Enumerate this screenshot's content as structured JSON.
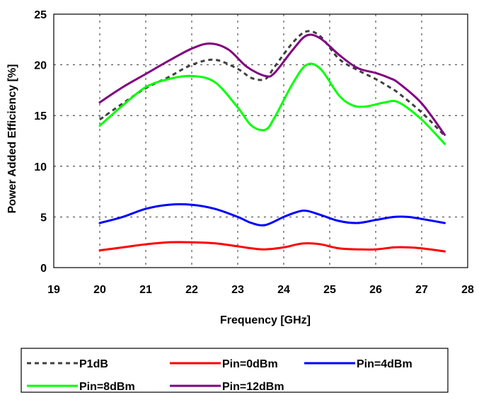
{
  "chart_data": {
    "type": "line",
    "title": "",
    "xlabel": "Frequency [GHz]",
    "ylabel": "Power Added Efficiency [%]",
    "xlim": [
      19,
      28
    ],
    "ylim": [
      0,
      25
    ],
    "x_ticks": [
      "19",
      "20",
      "21",
      "22",
      "23",
      "24",
      "25",
      "26",
      "27",
      "28"
    ],
    "y_ticks": [
      "0",
      "5",
      "10",
      "15",
      "20",
      "25"
    ],
    "grid": "dashed",
    "legend_position": "bottom",
    "series": [
      {
        "name": "P1dB",
        "color": "#404040",
        "style": "dashed",
        "x": [
          20,
          20.5,
          21,
          21.5,
          22,
          22.5,
          23,
          23.3,
          23.6,
          23.8,
          24.2,
          24.5,
          24.8,
          25.2,
          25.6,
          26,
          26.3,
          26.5,
          27,
          27.5
        ],
        "y": [
          14.6,
          16.2,
          17.7,
          18.8,
          20.0,
          20.5,
          19.6,
          18.7,
          18.6,
          19.8,
          22.2,
          23.3,
          22.8,
          20.6,
          19.5,
          18.6,
          17.8,
          17.2,
          15.3,
          13.0
        ]
      },
      {
        "name": "Pin=0dBm",
        "color": "#ff0000",
        "style": "solid",
        "x": [
          20,
          20.5,
          21,
          21.5,
          22,
          22.5,
          23,
          23.3,
          23.6,
          24,
          24.3,
          24.5,
          24.8,
          25.2,
          25.6,
          26,
          26.4,
          26.7,
          27,
          27.5
        ],
        "y": [
          1.7,
          2.0,
          2.3,
          2.5,
          2.5,
          2.4,
          2.1,
          1.9,
          1.8,
          2.0,
          2.3,
          2.4,
          2.3,
          1.9,
          1.8,
          1.8,
          2.0,
          2.0,
          1.9,
          1.6
        ]
      },
      {
        "name": "Pin=4dBm",
        "color": "#0000ff",
        "style": "solid",
        "x": [
          20,
          20.5,
          21,
          21.5,
          22,
          22.5,
          23,
          23.3,
          23.6,
          24,
          24.3,
          24.5,
          24.8,
          25.2,
          25.6,
          26,
          26.4,
          26.7,
          27,
          27.5
        ],
        "y": [
          4.4,
          5.0,
          5.8,
          6.2,
          6.2,
          5.8,
          5.0,
          4.4,
          4.2,
          5.0,
          5.5,
          5.6,
          5.2,
          4.6,
          4.4,
          4.7,
          5.0,
          5.0,
          4.8,
          4.4
        ]
      },
      {
        "name": "Pin=8dBm",
        "color": "#00ff00",
        "style": "solid",
        "x": [
          20,
          20.5,
          21,
          21.5,
          22,
          22.5,
          23,
          23.3,
          23.6,
          23.8,
          24.2,
          24.5,
          24.8,
          25.2,
          25.5,
          25.8,
          26.2,
          26.5,
          27,
          27.5
        ],
        "y": [
          14.0,
          16.0,
          17.8,
          18.6,
          18.9,
          18.3,
          15.8,
          14.0,
          13.6,
          14.8,
          18.2,
          20.0,
          19.6,
          17.0,
          16.0,
          15.9,
          16.3,
          16.3,
          14.6,
          12.2
        ]
      },
      {
        "name": "Pin=12dBm",
        "color": "#800080",
        "style": "solid",
        "x": [
          20,
          20.5,
          21,
          21.5,
          22,
          22.4,
          22.8,
          23.2,
          23.6,
          23.8,
          24.2,
          24.5,
          24.8,
          25.2,
          25.6,
          26,
          26.3,
          26.5,
          27,
          27.5
        ],
        "y": [
          16.3,
          17.8,
          19.1,
          20.4,
          21.6,
          22.1,
          21.5,
          19.8,
          18.9,
          19.2,
          21.5,
          22.9,
          22.6,
          21.0,
          19.7,
          19.2,
          18.7,
          18.2,
          16.2,
          13.1
        ]
      }
    ]
  }
}
